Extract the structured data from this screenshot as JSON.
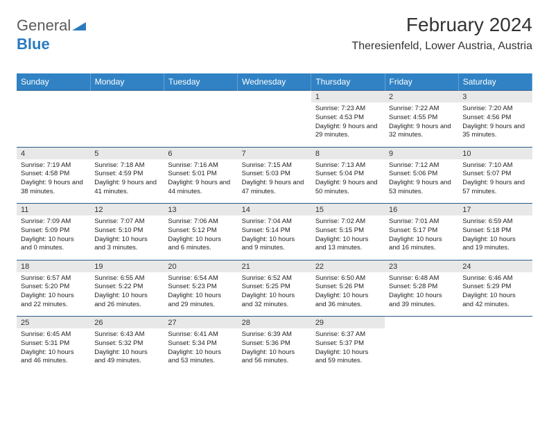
{
  "brand": {
    "part1": "General",
    "part2": "Blue"
  },
  "title": "February 2024",
  "location": "Theresienfeld, Lower Austria, Austria",
  "colors": {
    "header_bg": "#3082c4",
    "header_fg": "#ffffff",
    "daynum_bg": "#e8e8e8",
    "row_divider": "#2a5a85",
    "brand_gray": "#5a5a5a",
    "brand_blue": "#2a7ac0"
  },
  "weekdays": [
    "Sunday",
    "Monday",
    "Tuesday",
    "Wednesday",
    "Thursday",
    "Friday",
    "Saturday"
  ],
  "weeks": [
    [
      null,
      null,
      null,
      null,
      {
        "day": "1",
        "sunrise": "7:23 AM",
        "sunset": "4:53 PM",
        "daylight": "9 hours and 29 minutes."
      },
      {
        "day": "2",
        "sunrise": "7:22 AM",
        "sunset": "4:55 PM",
        "daylight": "9 hours and 32 minutes."
      },
      {
        "day": "3",
        "sunrise": "7:20 AM",
        "sunset": "4:56 PM",
        "daylight": "9 hours and 35 minutes."
      }
    ],
    [
      {
        "day": "4",
        "sunrise": "7:19 AM",
        "sunset": "4:58 PM",
        "daylight": "9 hours and 38 minutes."
      },
      {
        "day": "5",
        "sunrise": "7:18 AM",
        "sunset": "4:59 PM",
        "daylight": "9 hours and 41 minutes."
      },
      {
        "day": "6",
        "sunrise": "7:16 AM",
        "sunset": "5:01 PM",
        "daylight": "9 hours and 44 minutes."
      },
      {
        "day": "7",
        "sunrise": "7:15 AM",
        "sunset": "5:03 PM",
        "daylight": "9 hours and 47 minutes."
      },
      {
        "day": "8",
        "sunrise": "7:13 AM",
        "sunset": "5:04 PM",
        "daylight": "9 hours and 50 minutes."
      },
      {
        "day": "9",
        "sunrise": "7:12 AM",
        "sunset": "5:06 PM",
        "daylight": "9 hours and 53 minutes."
      },
      {
        "day": "10",
        "sunrise": "7:10 AM",
        "sunset": "5:07 PM",
        "daylight": "9 hours and 57 minutes."
      }
    ],
    [
      {
        "day": "11",
        "sunrise": "7:09 AM",
        "sunset": "5:09 PM",
        "daylight": "10 hours and 0 minutes."
      },
      {
        "day": "12",
        "sunrise": "7:07 AM",
        "sunset": "5:10 PM",
        "daylight": "10 hours and 3 minutes."
      },
      {
        "day": "13",
        "sunrise": "7:06 AM",
        "sunset": "5:12 PM",
        "daylight": "10 hours and 6 minutes."
      },
      {
        "day": "14",
        "sunrise": "7:04 AM",
        "sunset": "5:14 PM",
        "daylight": "10 hours and 9 minutes."
      },
      {
        "day": "15",
        "sunrise": "7:02 AM",
        "sunset": "5:15 PM",
        "daylight": "10 hours and 13 minutes."
      },
      {
        "day": "16",
        "sunrise": "7:01 AM",
        "sunset": "5:17 PM",
        "daylight": "10 hours and 16 minutes."
      },
      {
        "day": "17",
        "sunrise": "6:59 AM",
        "sunset": "5:18 PM",
        "daylight": "10 hours and 19 minutes."
      }
    ],
    [
      {
        "day": "18",
        "sunrise": "6:57 AM",
        "sunset": "5:20 PM",
        "daylight": "10 hours and 22 minutes."
      },
      {
        "day": "19",
        "sunrise": "6:55 AM",
        "sunset": "5:22 PM",
        "daylight": "10 hours and 26 minutes."
      },
      {
        "day": "20",
        "sunrise": "6:54 AM",
        "sunset": "5:23 PM",
        "daylight": "10 hours and 29 minutes."
      },
      {
        "day": "21",
        "sunrise": "6:52 AM",
        "sunset": "5:25 PM",
        "daylight": "10 hours and 32 minutes."
      },
      {
        "day": "22",
        "sunrise": "6:50 AM",
        "sunset": "5:26 PM",
        "daylight": "10 hours and 36 minutes."
      },
      {
        "day": "23",
        "sunrise": "6:48 AM",
        "sunset": "5:28 PM",
        "daylight": "10 hours and 39 minutes."
      },
      {
        "day": "24",
        "sunrise": "6:46 AM",
        "sunset": "5:29 PM",
        "daylight": "10 hours and 42 minutes."
      }
    ],
    [
      {
        "day": "25",
        "sunrise": "6:45 AM",
        "sunset": "5:31 PM",
        "daylight": "10 hours and 46 minutes."
      },
      {
        "day": "26",
        "sunrise": "6:43 AM",
        "sunset": "5:32 PM",
        "daylight": "10 hours and 49 minutes."
      },
      {
        "day": "27",
        "sunrise": "6:41 AM",
        "sunset": "5:34 PM",
        "daylight": "10 hours and 53 minutes."
      },
      {
        "day": "28",
        "sunrise": "6:39 AM",
        "sunset": "5:36 PM",
        "daylight": "10 hours and 56 minutes."
      },
      {
        "day": "29",
        "sunrise": "6:37 AM",
        "sunset": "5:37 PM",
        "daylight": "10 hours and 59 minutes."
      },
      null,
      null
    ]
  ],
  "labels": {
    "sunrise": "Sunrise:",
    "sunset": "Sunset:",
    "daylight": "Daylight:"
  }
}
